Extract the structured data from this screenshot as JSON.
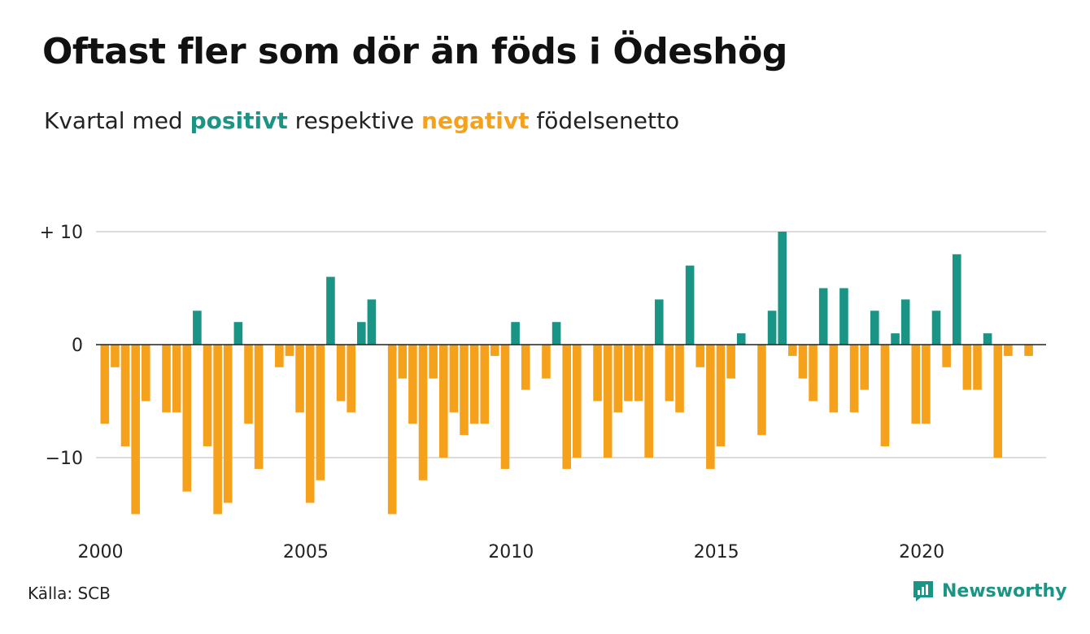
{
  "title": "Oftast fler som dör än föds i Ödeshög",
  "subtitle": {
    "part1": "Kvartal med ",
    "positive_word": "positivt",
    "part2": " respektive ",
    "negative_word": "negativt",
    "part3": " födelsenetto"
  },
  "colors": {
    "positive": "#1a9485",
    "negative": "#f6a11b",
    "grid": "#dcdcdc",
    "axis": "#222222"
  },
  "source": "Källa: SCB",
  "brand": {
    "name": "Newsworthy",
    "icon": "newsworthy-logo-icon"
  },
  "chart_data": {
    "type": "bar",
    "x_tick_labels": [
      "2000",
      "2005",
      "2010",
      "2015",
      "2020"
    ],
    "y_tick_labels": [
      "+ 10",
      "0",
      "−10"
    ],
    "y_ticks": [
      10,
      0,
      -10
    ],
    "ylim": [
      -16,
      10
    ],
    "first_period": "2000 Q1",
    "values": [
      -7,
      -2,
      -9,
      -15,
      -5,
      0,
      -6,
      -6,
      -13,
      3,
      -9,
      -15,
      -14,
      2,
      -7,
      -11,
      0,
      -2,
      -1,
      -6,
      -14,
      -12,
      6,
      -5,
      -6,
      2,
      4,
      0,
      -15,
      -3,
      -7,
      -12,
      -3,
      -10,
      -6,
      -8,
      -7,
      -7,
      -1,
      -11,
      2,
      -4,
      0,
      -3,
      2,
      -11,
      -10,
      0,
      -5,
      -10,
      -6,
      -5,
      -5,
      -10,
      4,
      -5,
      -6,
      7,
      -2,
      -11,
      -9,
      -3,
      1,
      0,
      -8,
      3,
      10,
      -1,
      -3,
      -5,
      5,
      -6,
      5,
      -6,
      -4,
      3,
      -9,
      1,
      4,
      -7,
      -7,
      3,
      -2,
      8,
      -4,
      -4,
      1,
      -10,
      -1,
      0,
      -1
    ],
    "grid": true,
    "legend": "none"
  }
}
